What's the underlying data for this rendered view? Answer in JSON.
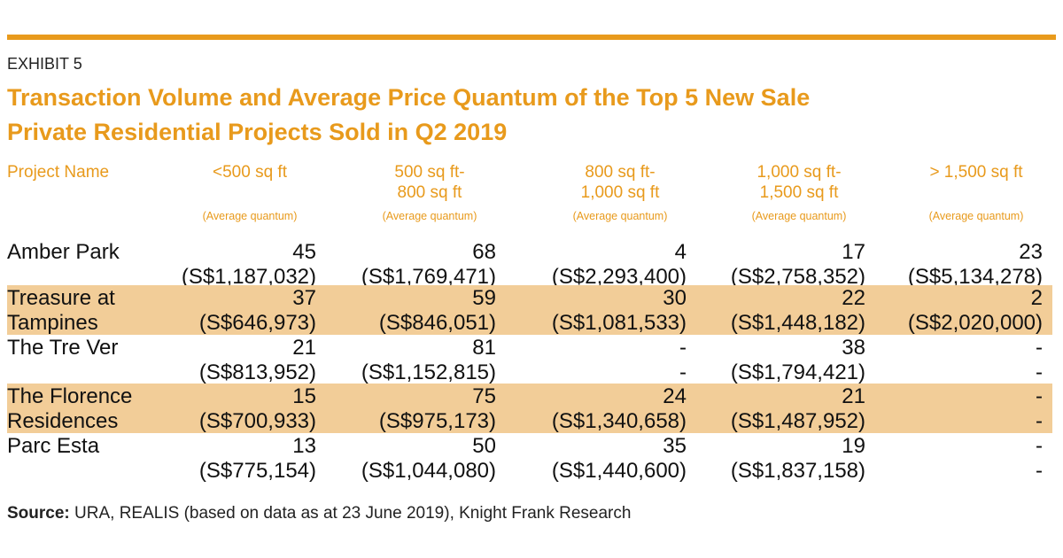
{
  "exhibit_label": "EXHIBIT 5",
  "title_lines": [
    "Transaction Volume and Average Price Quantum of the Top 5 New Sale",
    "Private Residential Projects Sold in Q2 2019"
  ],
  "colors": {
    "accent": "#e89a1c",
    "row_highlight": "#f2cd98"
  },
  "table": {
    "columns": [
      {
        "label": "Project Name"
      },
      {
        "label_lines": [
          "<500 sq ft"
        ],
        "sublabel": "(Average quantum)"
      },
      {
        "label_lines": [
          "500 sq ft-",
          "800 sq ft"
        ],
        "sublabel": "(Average quantum)"
      },
      {
        "label_lines": [
          "800 sq ft-",
          "1,000 sq ft"
        ],
        "sublabel": "(Average quantum)"
      },
      {
        "label_lines": [
          "1,000 sq ft-",
          "1,500 sq ft"
        ],
        "sublabel": "(Average quantum)"
      },
      {
        "label_lines": [
          "> 1,500 sq ft"
        ],
        "sublabel": "(Average quantum)"
      }
    ],
    "rows": [
      {
        "name_lines": [
          "Amber Park"
        ],
        "highlight": false,
        "cells": [
          [
            "45",
            "(S$1,187,032)"
          ],
          [
            "68",
            "(S$1,769,471)"
          ],
          [
            "4",
            "(S$2,293,400)"
          ],
          [
            "17",
            "(S$2,758,352)"
          ],
          [
            "23",
            "(S$5,134,278)"
          ]
        ]
      },
      {
        "name_lines": [
          "Treasure at",
          "Tampines"
        ],
        "highlight": true,
        "cells": [
          [
            "37",
            "(S$646,973)"
          ],
          [
            "59",
            "(S$846,051)"
          ],
          [
            "30",
            "(S$1,081,533)"
          ],
          [
            "22",
            "(S$1,448,182)"
          ],
          [
            "2",
            "(S$2,020,000)"
          ]
        ]
      },
      {
        "name_lines": [
          "The Tre Ver"
        ],
        "highlight": false,
        "cells": [
          [
            "21",
            "(S$813,952)"
          ],
          [
            "81",
            "(S$1,152,815)"
          ],
          [
            "-",
            "-"
          ],
          [
            "38",
            "(S$1,794,421)"
          ],
          [
            "-",
            "-"
          ]
        ]
      },
      {
        "name_lines": [
          "The Florence",
          "Residences"
        ],
        "highlight": true,
        "cells": [
          [
            "15",
            "(S$700,933)"
          ],
          [
            "75",
            "(S$975,173)"
          ],
          [
            "24",
            "(S$1,340,658)"
          ],
          [
            "21",
            "(S$1,487,952)"
          ],
          [
            "-",
            "-"
          ]
        ]
      },
      {
        "name_lines": [
          "Parc Esta"
        ],
        "highlight": false,
        "cells": [
          [
            "13",
            "(S$775,154)"
          ],
          [
            "50",
            "(S$1,044,080)"
          ],
          [
            "35",
            "(S$1,440,600)"
          ],
          [
            "19",
            "(S$1,837,158)"
          ],
          [
            "-",
            "-"
          ]
        ]
      }
    ]
  },
  "source": {
    "label": "Source:",
    "text": " URA, REALIS (based on data as at 23 June 2019), Knight Frank Research"
  }
}
